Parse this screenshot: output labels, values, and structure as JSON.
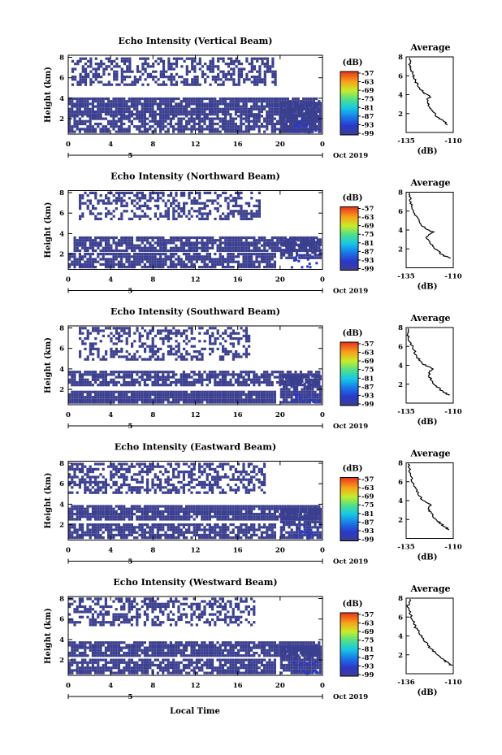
{
  "figure": {
    "xlabel_common": "Local Time",
    "date_label": "Oct 2019",
    "day_label": "5"
  },
  "colorbar": {
    "unit": "(dB)",
    "ticks": [
      "-57",
      "-63",
      "-69",
      "-75",
      "-81",
      "-87",
      "-93",
      "-99"
    ]
  },
  "chart_data": [
    {
      "type": "heatmap",
      "title": "Echo Intensity (Vertical Beam)",
      "xlabel": "",
      "ylabel": "Height (km)",
      "xticks": [
        "0",
        "4",
        "8",
        "12",
        "16",
        "20",
        "0"
      ],
      "yticks": [
        "2",
        "4",
        "6",
        "8"
      ],
      "xlim": [
        0,
        24
      ],
      "ylim": [
        0.5,
        8.2
      ],
      "regions": [
        {
          "t0": 0.3,
          "t1": 19.5,
          "h0": 5.2,
          "h1": 7.9,
          "fill": 0.55
        },
        {
          "t0": 0.0,
          "t1": 24.0,
          "h0": 2.3,
          "h1": 3.9,
          "fill": 0.9
        },
        {
          "t0": 0.0,
          "t1": 24.0,
          "h0": 0.6,
          "h1": 2.2,
          "fill": 0.75
        },
        {
          "t0": 20.0,
          "t1": 24.0,
          "h0": 0.6,
          "h1": 3.4,
          "fill": 0.9
        }
      ],
      "average": {
        "title": "Average",
        "xlabel": "(dB)",
        "xticks": [
          "-135",
          "-110"
        ],
        "xlim": [
          -135,
          -110
        ],
        "ylim": [
          0,
          8
        ],
        "profile": [
          [
            -113,
            0.8
          ],
          [
            -115,
            1.2
          ],
          [
            -118,
            1.6
          ],
          [
            -121,
            2.2
          ],
          [
            -123,
            2.8
          ],
          [
            -124,
            3.4
          ],
          [
            -122,
            3.9
          ],
          [
            -126,
            4.2
          ],
          [
            -128,
            4.8
          ],
          [
            -130,
            5.4
          ],
          [
            -131,
            6.0
          ],
          [
            -132,
            6.6
          ],
          [
            -133,
            7.2
          ],
          [
            -133,
            7.9
          ]
        ]
      }
    },
    {
      "type": "heatmap",
      "title": "Echo Intensity (Northward Beam)",
      "xlabel": "",
      "ylabel": "Height (km)",
      "xticks": [
        "0",
        "4",
        "8",
        "12",
        "16",
        "20",
        "0"
      ],
      "yticks": [
        "2",
        "4",
        "6",
        "8"
      ],
      "xlim": [
        0,
        24
      ],
      "ylim": [
        0.5,
        8.2
      ],
      "regions": [
        {
          "t0": 1.0,
          "t1": 18.0,
          "h0": 5.3,
          "h1": 8.0,
          "fill": 0.45
        },
        {
          "t0": 0.5,
          "t1": 24.0,
          "h0": 2.2,
          "h1": 3.7,
          "fill": 0.85
        },
        {
          "t0": 0.0,
          "t1": 19.5,
          "h0": 0.6,
          "h1": 2.0,
          "fill": 0.8
        },
        {
          "t0": 20.0,
          "t1": 24.0,
          "h0": 1.5,
          "h1": 3.3,
          "fill": 0.8
        }
      ],
      "average": {
        "title": "Average",
        "xlabel": "(dB)",
        "xticks": [
          "-135",
          "-110"
        ],
        "xlim": [
          -135,
          -110
        ],
        "ylim": [
          0,
          8
        ],
        "profile": [
          [
            -112,
            1.0
          ],
          [
            -116,
            1.4
          ],
          [
            -119,
            1.9
          ],
          [
            -122,
            2.5
          ],
          [
            -124,
            3.2
          ],
          [
            -121,
            3.8
          ],
          [
            -125,
            4.2
          ],
          [
            -128,
            4.8
          ],
          [
            -130,
            5.6
          ],
          [
            -132,
            6.4
          ],
          [
            -133,
            7.2
          ],
          [
            -133,
            7.9
          ]
        ]
      }
    },
    {
      "type": "heatmap",
      "title": "Echo Intensity (Southward Beam)",
      "xlabel": "",
      "ylabel": "Height (km)",
      "xticks": [
        "0",
        "4",
        "8",
        "12",
        "16",
        "20",
        "0"
      ],
      "yticks": [
        "2",
        "4",
        "6",
        "8"
      ],
      "xlim": [
        0,
        24
      ],
      "ylim": [
        0.5,
        8.2
      ],
      "regions": [
        {
          "t0": 1.0,
          "t1": 17.0,
          "h0": 4.8,
          "h1": 8.0,
          "fill": 0.45
        },
        {
          "t0": 0.0,
          "t1": 24.0,
          "h0": 2.3,
          "h1": 3.8,
          "fill": 0.75
        },
        {
          "t0": 0.0,
          "t1": 19.5,
          "h0": 0.6,
          "h1": 1.7,
          "fill": 0.95
        },
        {
          "t0": 20.0,
          "t1": 24.0,
          "h0": 0.6,
          "h1": 3.3,
          "fill": 0.85
        }
      ],
      "average": {
        "title": "Average",
        "xlabel": "(dB)",
        "xticks": [
          "-135",
          "-110"
        ],
        "xlim": [
          -135,
          -110
        ],
        "ylim": [
          0,
          8
        ],
        "profile": [
          [
            -112,
            0.8
          ],
          [
            -116,
            1.3
          ],
          [
            -119,
            1.8
          ],
          [
            -122,
            2.5
          ],
          [
            -123,
            3.2
          ],
          [
            -121,
            3.7
          ],
          [
            -126,
            4.1
          ],
          [
            -129,
            4.8
          ],
          [
            -131,
            5.6
          ],
          [
            -133,
            6.5
          ],
          [
            -134,
            7.3
          ],
          [
            -134,
            7.9
          ]
        ]
      }
    },
    {
      "type": "heatmap",
      "title": "Echo Intensity (Eastward Beam)",
      "xlabel": "",
      "ylabel": "Height (km)",
      "xticks": [
        "0",
        "4",
        "8",
        "12",
        "16",
        "20",
        "0"
      ],
      "yticks": [
        "2",
        "4",
        "6",
        "8"
      ],
      "xlim": [
        0,
        24
      ],
      "ylim": [
        0.5,
        8.2
      ],
      "regions": [
        {
          "t0": 0.0,
          "t1": 18.5,
          "h0": 5.0,
          "h1": 8.0,
          "fill": 0.55
        },
        {
          "t0": 0.0,
          "t1": 24.0,
          "h0": 2.4,
          "h1": 3.8,
          "fill": 0.9
        },
        {
          "t0": 0.0,
          "t1": 19.5,
          "h0": 0.6,
          "h1": 2.1,
          "fill": 0.8
        },
        {
          "t0": 20.0,
          "t1": 24.0,
          "h0": 0.6,
          "h1": 3.4,
          "fill": 0.9
        }
      ],
      "average": {
        "title": "Average",
        "xlabel": "(dB)",
        "xticks": [
          "-135",
          "-110"
        ],
        "xlim": [
          -135,
          -110
        ],
        "ylim": [
          0,
          8
        ],
        "profile": [
          [
            -112,
            0.9
          ],
          [
            -115,
            1.3
          ],
          [
            -118,
            1.8
          ],
          [
            -121,
            2.4
          ],
          [
            -123,
            3.0
          ],
          [
            -122,
            3.6
          ],
          [
            -126,
            4.0
          ],
          [
            -128,
            4.6
          ],
          [
            -130,
            5.4
          ],
          [
            -132,
            6.2
          ],
          [
            -133,
            7.0
          ],
          [
            -134,
            7.9
          ]
        ]
      }
    },
    {
      "type": "heatmap",
      "title": "Echo Intensity (Westward Beam)",
      "xlabel": "Local Time",
      "ylabel": "Height (km)",
      "xticks": [
        "0",
        "4",
        "8",
        "12",
        "16",
        "20",
        "0"
      ],
      "yticks": [
        "2",
        "4",
        "6",
        "8"
      ],
      "xlim": [
        0,
        24
      ],
      "ylim": [
        0.5,
        8.2
      ],
      "regions": [
        {
          "t0": 0.0,
          "t1": 17.5,
          "h0": 5.3,
          "h1": 8.0,
          "fill": 0.5
        },
        {
          "t0": 0.0,
          "t1": 24.0,
          "h0": 2.3,
          "h1": 3.8,
          "fill": 0.85
        },
        {
          "t0": 0.0,
          "t1": 19.5,
          "h0": 0.6,
          "h1": 1.9,
          "fill": 0.8
        },
        {
          "t0": 20.0,
          "t1": 24.0,
          "h0": 0.6,
          "h1": 3.3,
          "fill": 0.85
        }
      ],
      "average": {
        "title": "Average",
        "xlabel": "(dB)",
        "xticks": [
          "-136",
          "-110"
        ],
        "xlim": [
          -136,
          -110
        ],
        "ylim": [
          0,
          8
        ],
        "profile": [
          [
            -111,
            0.9
          ],
          [
            -114,
            1.3
          ],
          [
            -117,
            1.8
          ],
          [
            -121,
            2.4
          ],
          [
            -124,
            3.0
          ],
          [
            -126,
            3.6
          ],
          [
            -128,
            4.2
          ],
          [
            -131,
            4.9
          ],
          [
            -132,
            5.6
          ],
          [
            -134,
            6.4
          ],
          [
            -135,
            7.2
          ],
          [
            -134,
            7.9
          ]
        ]
      }
    }
  ]
}
